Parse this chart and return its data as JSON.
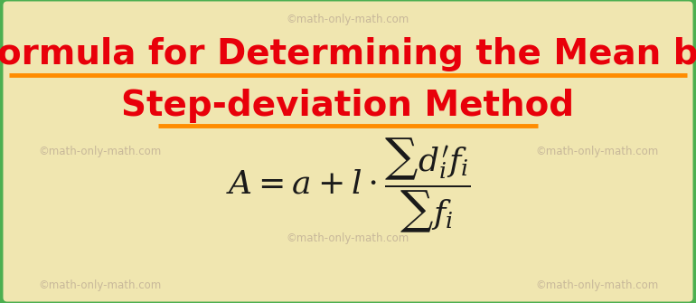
{
  "bg_color": "#f0e6b0",
  "border_color": "#4caf50",
  "title_line1": "Formula for Determining the Mean by",
  "title_line2": "Step-deviation Method",
  "title_color": "#e8000a",
  "underline_color": "#ff8c00",
  "watermark_color": "#c8b89a",
  "watermark_text": "©math-only-math.com",
  "formula_color": "#1a1a1a",
  "title_fontsize": 28,
  "watermark_fontsize": 8.5,
  "formula_fontsize": 26
}
